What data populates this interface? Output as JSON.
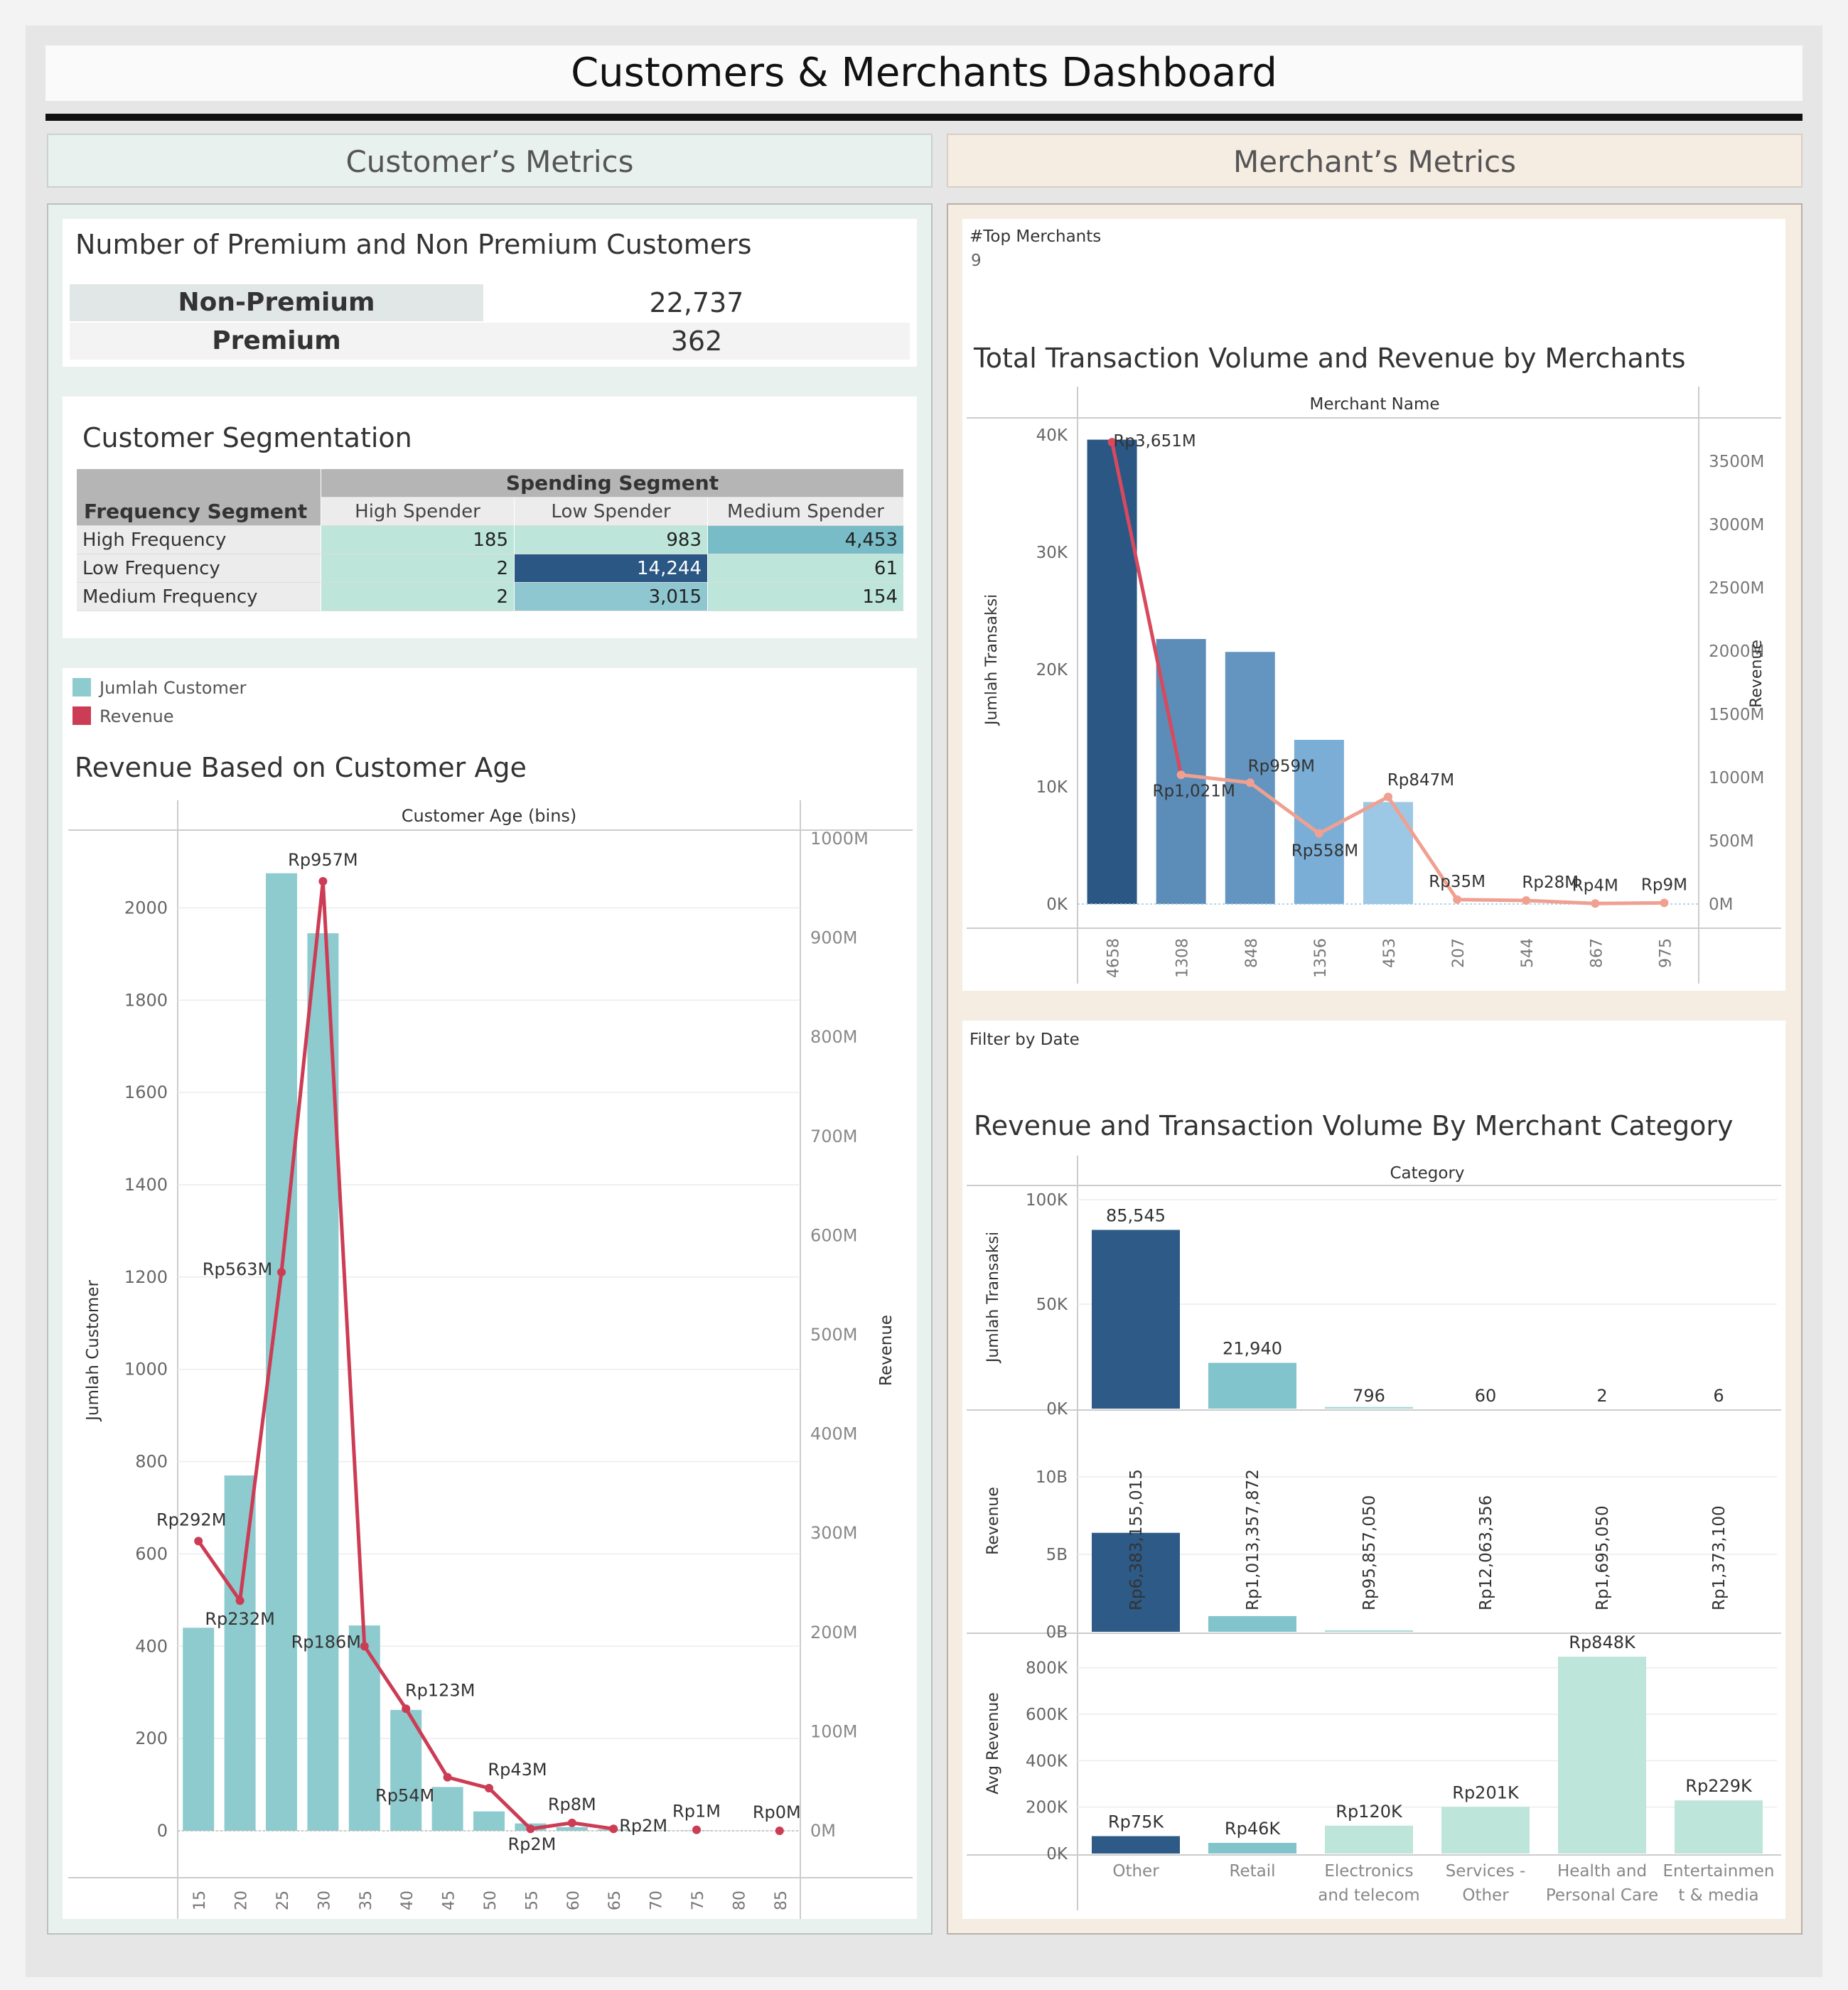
{
  "dashboard": {
    "title": "Customers & Merchants Dashboard",
    "left_section": "Customer’s Metrics",
    "right_section": "Merchant’s Metrics"
  },
  "premium": {
    "title": "Number of Premium and Non Premium Customers",
    "rows": [
      {
        "label": "Non-Premium",
        "value": "22,737"
      },
      {
        "label": "Premium",
        "value": "362"
      }
    ]
  },
  "segmentation": {
    "title": "Customer Segmentation",
    "col_group": "Spending Segment",
    "row_header": "Frequency Segment",
    "columns": [
      "High Spender",
      "Low Spender",
      "Medium Spender"
    ],
    "rows": [
      {
        "label": "High Frequency",
        "values": [
          "185",
          "983",
          "4,453"
        ]
      },
      {
        "label": "Low Frequency",
        "values": [
          "2",
          "14,244",
          "61"
        ]
      },
      {
        "label": "Medium Frequency",
        "values": [
          "2",
          "3,015",
          "154"
        ]
      }
    ],
    "colors": {
      "light": "#bde5da",
      "mid": "#77bcc7",
      "teal": "#8fc7d1",
      "dark": "#2a5784"
    }
  },
  "age_chart": {
    "legend": [
      "Jumlah Customer",
      "Revenue"
    ],
    "colors": {
      "bar": "#8ecbce",
      "line": "#cc3c55"
    }
  },
  "merchants": {
    "filter_title": "#Top Merchants",
    "filter_value": "9",
    "filter_date": "Filter by Date"
  },
  "chart_data": [
    {
      "type": "bar",
      "title": "Revenue Based on Customer Age",
      "header": "Customer Age (bins)",
      "ylabel": "Jumlah Customer",
      "y2label": "Revenue",
      "categories": [
        "15",
        "20",
        "25",
        "30",
        "35",
        "40",
        "45",
        "50",
        "55",
        "60",
        "65",
        "70",
        "75",
        "80",
        "85"
      ],
      "ylim": [
        0,
        2150
      ],
      "y2lim": [
        0,
        1000
      ],
      "yticks": [
        "0",
        "200",
        "400",
        "600",
        "800",
        "1000",
        "1200",
        "1400",
        "1600",
        "1800",
        "2000"
      ],
      "y2ticks": [
        "0M",
        "100M",
        "200M",
        "300M",
        "400M",
        "500M",
        "600M",
        "700M",
        "800M",
        "900M",
        "1000M"
      ],
      "series": [
        {
          "name": "Jumlah Customer",
          "values": [
            440,
            770,
            2075,
            1945,
            445,
            262,
            95,
            42,
            16,
            8,
            3,
            1,
            1,
            0,
            0
          ]
        },
        {
          "name": "Revenue",
          "values": [
            292,
            232,
            563,
            957,
            186,
            123,
            54,
            43,
            2,
            8,
            2,
            null,
            1,
            null,
            0
          ],
          "labels": [
            "Rp292M",
            "Rp232M",
            "Rp563M",
            "Rp957M",
            "Rp186M",
            "Rp123M",
            "Rp54M",
            "Rp43M",
            "Rp2M",
            "Rp8M",
            "Rp2M",
            "",
            "Rp1M",
            "",
            "Rp0M"
          ]
        }
      ]
    },
    {
      "type": "bar",
      "title": "Total Transaction Volume and Revenue by Merchants",
      "header": "Merchant Name",
      "ylabel": "Jumlah Transaksi",
      "y2label": "Revenue",
      "categories": [
        "4658",
        "1308",
        "848",
        "1356",
        "453",
        "207",
        "544",
        "867",
        "975"
      ],
      "ylim": [
        0,
        40000
      ],
      "y2lim": [
        0,
        3700
      ],
      "yticks": [
        "0K",
        "10K",
        "20K",
        "30K",
        "40K"
      ],
      "y2ticks": [
        "0M",
        "500M",
        "1000M",
        "1500M",
        "2000M",
        "2500M",
        "3000M",
        "3500M"
      ],
      "series": [
        {
          "name": "Jumlah Transaksi",
          "values": [
            39600,
            22600,
            21500,
            14000,
            8700,
            0,
            0,
            0,
            0
          ]
        },
        {
          "name": "Revenue",
          "values": [
            3651,
            1021,
            959,
            558,
            847,
            35,
            28,
            4,
            9
          ],
          "labels": [
            "Rp3,651M",
            "Rp1,021M",
            "Rp959M",
            "Rp558M",
            "Rp847M",
            "Rp35M",
            "Rp28M",
            "Rp4M",
            "Rp9M"
          ]
        }
      ],
      "colors": [
        "#2a5784",
        "#5b8db8",
        "#6495c0",
        "#7aaed6",
        "#9cc8e6"
      ]
    },
    {
      "type": "bar",
      "title": "Revenue and Transaction Volume By Merchant Category",
      "header": "Category",
      "categories": [
        "Other",
        "Retail",
        "Electronics and telecom",
        "Services - Other",
        "Health and Personal Care",
        "Entertainment & media"
      ],
      "category_lines": [
        [
          "Other"
        ],
        [
          "Retail"
        ],
        [
          "Electronics",
          "and telecom"
        ],
        [
          "Services -",
          "Other"
        ],
        [
          "Health and",
          "Personal Care"
        ],
        [
          "Entertainmen",
          "t & media"
        ]
      ],
      "panels": [
        {
          "ylabel": "Jumlah Transaksi",
          "ylim": [
            0,
            100000
          ],
          "yticks": [
            "0K",
            "50K",
            "100K"
          ],
          "values": [
            85545,
            21940,
            796,
            60,
            2,
            6
          ],
          "labels": [
            "85,545",
            "21,940",
            "796",
            "60",
            "2",
            "6"
          ],
          "colors": [
            "#2d5a86",
            "#82c4cc",
            "#a8d8d8",
            "#bde5da",
            "#bde5da",
            "#bde5da"
          ]
        },
        {
          "ylabel": "Revenue",
          "ylim": [
            0,
            11000
          ],
          "yticks": [
            "0B",
            "5B",
            "10B"
          ],
          "values": [
            6383.155015,
            1013.357872,
            95.85705,
            12.063356,
            1.69505,
            1.3731
          ],
          "labels": [
            "Rp6,383,155,015",
            "Rp1,013,357,872",
            "Rp95,857,050",
            "Rp12,063,356",
            "Rp1,695,050",
            "Rp1,373,100"
          ],
          "colors": [
            "#2d5a86",
            "#82c4cc",
            "#a8d8d8",
            "#bde5da",
            "#bde5da",
            "#bde5da"
          ]
        },
        {
          "ylabel": "Avg Revenue",
          "ylim": [
            0,
            900
          ],
          "yticks": [
            "0K",
            "200K",
            "400K",
            "600K",
            "800K"
          ],
          "values": [
            75,
            46,
            120,
            201,
            848,
            229
          ],
          "labels": [
            "Rp75K",
            "Rp46K",
            "Rp120K",
            "Rp201K",
            "Rp848K",
            "Rp229K"
          ],
          "colors": [
            "#2d5a86",
            "#82c4cc",
            "#bde5da",
            "#bde5da",
            "#bde5da",
            "#bde5da"
          ]
        }
      ]
    }
  ]
}
